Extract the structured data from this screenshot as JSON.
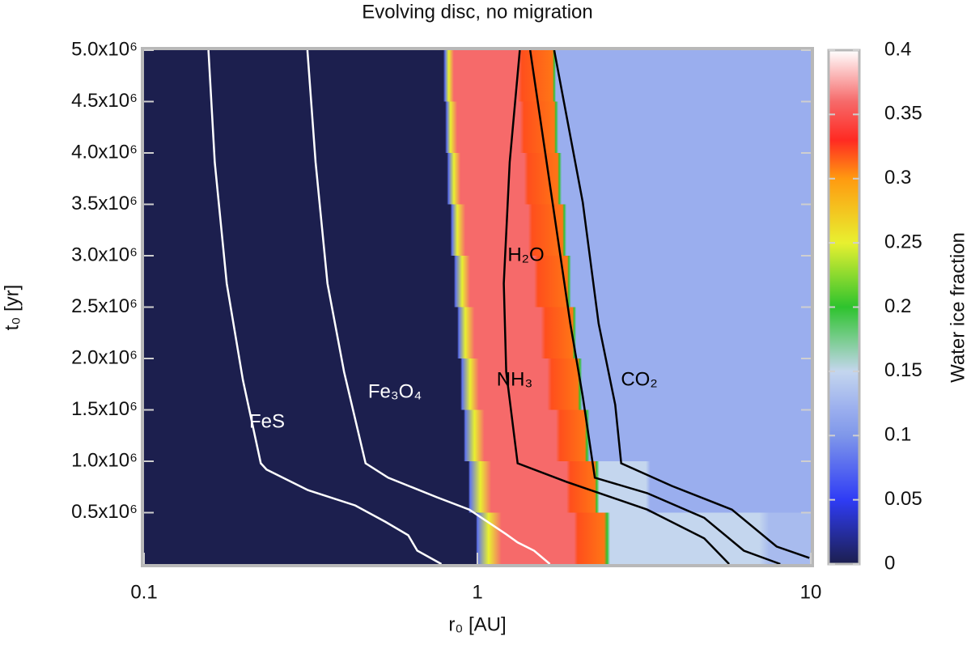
{
  "chart_data": {
    "type": "heatmap",
    "title": "Evolving disc, no migration",
    "xlabel": "r₀ [AU]",
    "ylabel": "t₀ [yr]",
    "colorbar_label": "Water ice fraction",
    "xlog": true,
    "xlim": [
      0.1,
      10
    ],
    "xticks": [
      0.1,
      1,
      10
    ],
    "ylim": [
      0,
      5000000
    ],
    "yticks": [
      {
        "value": 500000,
        "label": "0.5x10⁶"
      },
      {
        "value": 1000000,
        "label": "1.0x10⁶"
      },
      {
        "value": 1500000,
        "label": "1.5x10⁶"
      },
      {
        "value": 2000000,
        "label": "2.0x10⁶"
      },
      {
        "value": 2500000,
        "label": "2.5x10⁶"
      },
      {
        "value": 3000000,
        "label": "3.0x10⁶"
      },
      {
        "value": 3500000,
        "label": "3.5x10⁶"
      },
      {
        "value": 4000000,
        "label": "4.0x10⁶"
      },
      {
        "value": 4500000,
        "label": "4.5x10⁶"
      },
      {
        "value": 5000000,
        "label": "5.0x10⁶"
      }
    ],
    "zlim": [
      0,
      0.4
    ],
    "zticks": [
      0,
      0.05,
      0.1,
      0.15,
      0.2,
      0.25,
      0.3,
      0.35,
      0.4
    ],
    "colormap": [
      [
        0,
        "#1c1f4e"
      ],
      [
        0.05,
        "#2f3cf5"
      ],
      [
        0.1,
        "#7f97ea"
      ],
      [
        0.12,
        "#9aaeee"
      ],
      [
        0.15,
        "#c4d6ee"
      ],
      [
        0.2,
        "#2ec32e"
      ],
      [
        0.25,
        "#e8f030"
      ],
      [
        0.3,
        "#ff9a10"
      ],
      [
        0.33,
        "#ff2a22"
      ],
      [
        0.36,
        "#f66a6a"
      ],
      [
        0.4,
        "#ffffff"
      ]
    ],
    "rows": [
      {
        "t": [
          4500000,
          5000000
        ],
        "r": [
          0.1,
          0.79,
          0.8,
          0.82,
          0.85,
          1.32,
          1.36,
          1.68,
          1.7,
          1.72,
          10
        ],
        "z": [
          0,
          0,
          0.08,
          0.25,
          0.36,
          0.36,
          0.32,
          0.31,
          0.2,
          0.12,
          0.12
        ]
      },
      {
        "t": [
          4000000,
          4500000
        ],
        "r": [
          0.1,
          0.8,
          0.81,
          0.83,
          0.87,
          1.34,
          1.38,
          1.7,
          1.72,
          1.75,
          10
        ],
        "z": [
          0,
          0,
          0.08,
          0.25,
          0.36,
          0.36,
          0.32,
          0.31,
          0.2,
          0.12,
          0.12
        ]
      },
      {
        "t": [
          3500000,
          4000000
        ],
        "r": [
          0.1,
          0.81,
          0.82,
          0.85,
          0.89,
          1.38,
          1.42,
          1.74,
          1.76,
          1.79,
          10
        ],
        "z": [
          0,
          0,
          0.08,
          0.25,
          0.36,
          0.36,
          0.32,
          0.31,
          0.2,
          0.12,
          0.12
        ]
      },
      {
        "t": [
          3000000,
          3500000
        ],
        "r": [
          0.1,
          0.83,
          0.84,
          0.87,
          0.92,
          1.42,
          1.46,
          1.8,
          1.82,
          1.85,
          10
        ],
        "z": [
          0,
          0,
          0.08,
          0.25,
          0.36,
          0.36,
          0.32,
          0.31,
          0.2,
          0.12,
          0.12
        ]
      },
      {
        "t": [
          2500000,
          3000000
        ],
        "r": [
          0.1,
          0.85,
          0.86,
          0.9,
          0.95,
          1.48,
          1.52,
          1.86,
          1.88,
          1.91,
          10
        ],
        "z": [
          0,
          0,
          0.08,
          0.25,
          0.36,
          0.36,
          0.32,
          0.31,
          0.2,
          0.12,
          0.12
        ]
      },
      {
        "t": [
          2000000,
          2500000
        ],
        "r": [
          0.1,
          0.87,
          0.88,
          0.92,
          0.98,
          1.55,
          1.6,
          1.93,
          1.95,
          1.98,
          10
        ],
        "z": [
          0,
          0,
          0.08,
          0.25,
          0.36,
          0.36,
          0.32,
          0.31,
          0.2,
          0.12,
          0.12
        ]
      },
      {
        "t": [
          1500000,
          2000000
        ],
        "r": [
          0.1,
          0.89,
          0.9,
          0.95,
          1.01,
          1.62,
          1.67,
          2.0,
          2.03,
          2.06,
          10
        ],
        "z": [
          0,
          0,
          0.08,
          0.25,
          0.36,
          0.36,
          0.32,
          0.31,
          0.2,
          0.12,
          0.12
        ]
      },
      {
        "t": [
          1000000,
          1500000
        ],
        "r": [
          0.1,
          0.91,
          0.92,
          0.98,
          1.05,
          1.72,
          1.77,
          2.1,
          2.13,
          2.17,
          10
        ],
        "z": [
          0,
          0,
          0.08,
          0.25,
          0.36,
          0.36,
          0.32,
          0.31,
          0.2,
          0.12,
          0.12
        ]
      },
      {
        "t": [
          500000,
          1000000
        ],
        "r": [
          0.1,
          0.94,
          0.95,
          1.02,
          1.1,
          1.85,
          1.9,
          2.25,
          2.28,
          2.32,
          3.2,
          3.3,
          10
        ],
        "z": [
          0,
          0,
          0.08,
          0.25,
          0.36,
          0.36,
          0.32,
          0.31,
          0.2,
          0.15,
          0.15,
          0.12,
          0.12
        ]
      },
      {
        "t": [
          0,
          500000
        ],
        "r": [
          0.1,
          0.99,
          1.0,
          1.08,
          1.18,
          1.95,
          2.0,
          2.4,
          2.45,
          2.5,
          7,
          7.5,
          10
        ],
        "z": [
          0,
          0,
          0.08,
          0.25,
          0.36,
          0.36,
          0.32,
          0.31,
          0.2,
          0.15,
          0.15,
          0.13,
          0.13
        ]
      }
    ],
    "contours": [
      {
        "name": "FeS",
        "color": "#ffffff",
        "r": [
          0.156,
          0.163,
          0.177,
          0.198,
          0.224,
          0.233,
          0.31,
          0.43,
          0.53,
          0.62,
          0.66,
          0.78
        ],
        "t": [
          5000000,
          3910000,
          2730000,
          1790000,
          980000,
          920000,
          720000,
          570000,
          410000,
          280000,
          130000,
          0
        ]
      },
      {
        "name": "Fe₃O₄",
        "color": "#ffffff",
        "r": [
          0.309,
          0.327,
          0.355,
          0.398,
          0.462,
          0.54,
          0.756,
          0.945,
          1.22,
          1.32,
          1.48,
          1.65
        ],
        "t": [
          5000000,
          3910000,
          2730000,
          1870000,
          980000,
          840000,
          650000,
          530000,
          290000,
          210000,
          130000,
          0
        ]
      },
      {
        "name": "H₂O",
        "color": "#000000",
        "r": [
          1.34,
          1.25,
          1.2,
          1.22,
          1.32,
          1.85,
          3.23,
          4.79,
          5.69
        ],
        "t": [
          5000000,
          3910000,
          2730000,
          1870000,
          980000,
          800000,
          530000,
          250000,
          0
        ]
      },
      {
        "name": "NH₃",
        "color": "#000000",
        "r": [
          1.44,
          1.75,
          1.9,
          2.07,
          2.25,
          3.23,
          4.79,
          6.3,
          8.1
        ],
        "t": [
          5000000,
          3130000,
          2340000,
          1630000,
          840000,
          690000,
          450000,
          130000,
          0
        ]
      },
      {
        "name": "CO₂",
        "color": "#000000",
        "r": [
          1.7,
          2.07,
          2.31,
          2.59,
          2.7,
          3.83,
          5.8,
          7.9,
          9.9
        ],
        "t": [
          5000000,
          3520000,
          2340000,
          1550000,
          980000,
          760000,
          530000,
          170000,
          60000
        ]
      }
    ]
  }
}
